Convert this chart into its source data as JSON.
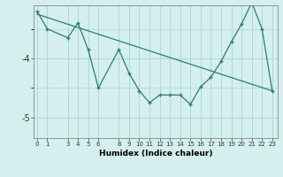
{
  "xlabel": "Humidex (Indice chaleur)",
  "bg_color": "#d4efed",
  "grid_color": "#b0d8d5",
  "line_color": "#2e7d6e",
  "ylim": [
    -5.35,
    -3.1
  ],
  "yticks": [
    -5,
    -4
  ],
  "xticks": [
    0,
    1,
    3,
    4,
    5,
    6,
    8,
    9,
    10,
    11,
    12,
    13,
    14,
    15,
    16,
    17,
    18,
    19,
    20,
    21,
    22,
    23
  ],
  "xlim": [
    -0.3,
    23.5
  ],
  "data_x": [
    0,
    1,
    3,
    4,
    5,
    6,
    8,
    9,
    10,
    11,
    12,
    13,
    14,
    15,
    16,
    17,
    18,
    19,
    20,
    21,
    22,
    23
  ],
  "data_y": [
    -3.2,
    -3.5,
    -3.65,
    -3.4,
    -3.85,
    -4.5,
    -3.85,
    -4.25,
    -4.55,
    -4.75,
    -4.62,
    -4.62,
    -4.62,
    -4.78,
    -4.48,
    -4.32,
    -4.05,
    -3.72,
    -3.42,
    -3.05,
    -3.5,
    -4.55
  ],
  "trend_x": [
    0,
    23
  ],
  "trend_y": [
    -3.25,
    -4.55
  ]
}
